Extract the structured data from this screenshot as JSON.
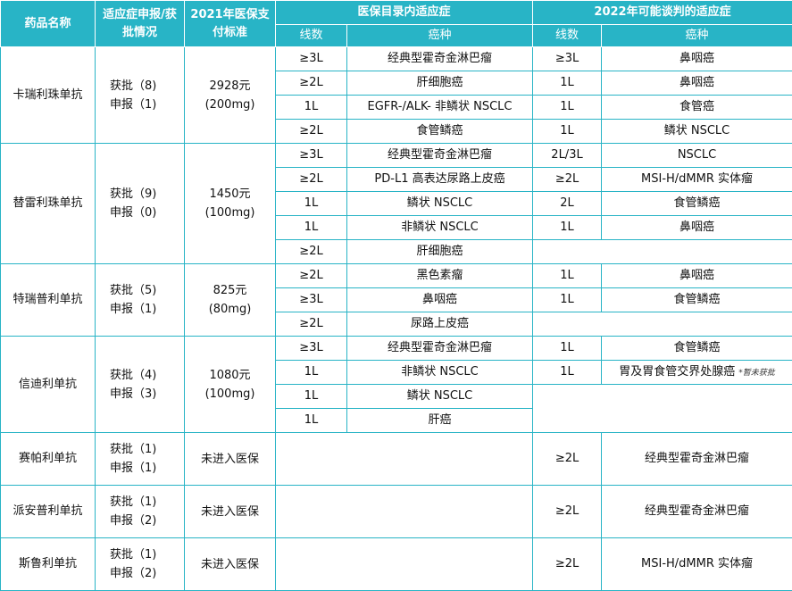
{
  "header": {
    "drug": "药品名称",
    "status": "适应症申报/获批情况",
    "price": "2021年医保支付标准",
    "group_current": "医保目录内适应症",
    "group_future": "2022年可能谈判的适应症",
    "line": "线数",
    "cancer": "癌种"
  },
  "drugs": [
    {
      "name": "卡瑞利珠单抗",
      "approved": "获批（8)",
      "filed": "申报（1)",
      "price": "2928元",
      "dose": "(200mg)",
      "rows": [
        {
          "cl": "≥3L",
          "cc": "经典型霍奇金淋巴瘤",
          "fl": "≥3L",
          "fc": "鼻咽癌"
        },
        {
          "cl": "≥2L",
          "cc": "肝细胞癌",
          "fl": "1L",
          "fc": "鼻咽癌"
        },
        {
          "cl": "1L",
          "cc": "EGFR-/ALK- 非鳞状 NSCLC",
          "fl": "1L",
          "fc": "食管癌"
        },
        {
          "cl": "≥2L",
          "cc": "食管鳞癌",
          "fl": "1L",
          "fc": "鳞状 NSCLC"
        }
      ]
    },
    {
      "name": "替雷利珠单抗",
      "approved": "获批（9)",
      "filed": "申报（0)",
      "price": "1450元",
      "dose": "(100mg)",
      "rows": [
        {
          "cl": "≥3L",
          "cc": "经典型霍奇金淋巴瘤",
          "fl": "2L/3L",
          "fc": "NSCLC"
        },
        {
          "cl": "≥2L",
          "cc": "PD-L1 高表达尿路上皮癌",
          "fl": "≥2L",
          "fc": "MSI-H/dMMR 实体瘤"
        },
        {
          "cl": "1L",
          "cc": "鳞状 NSCLC",
          "fl": "2L",
          "fc": "食管鳞癌"
        },
        {
          "cl": "1L",
          "cc": "非鳞状 NSCLC",
          "fl": "1L",
          "fc": "鼻咽癌"
        },
        {
          "cl": "≥2L",
          "cc": "肝细胞癌",
          "fl": "",
          "fc": ""
        }
      ]
    },
    {
      "name": "特瑞普利单抗",
      "approved": "获批（5)",
      "filed": "申报（1)",
      "price": "825元",
      "dose": "(80mg)",
      "rows": [
        {
          "cl": "≥2L",
          "cc": "黑色素瘤",
          "fl": "1L",
          "fc": "鼻咽癌"
        },
        {
          "cl": "≥3L",
          "cc": "鼻咽癌",
          "fl": "1L",
          "fc": "食管鳞癌"
        },
        {
          "cl": "≥2L",
          "cc": "尿路上皮癌",
          "fl": "",
          "fc": ""
        }
      ]
    },
    {
      "name": "信迪利单抗",
      "approved": "获批（4)",
      "filed": "申报（3)",
      "price": "1080元",
      "dose": "(100mg)",
      "rows": [
        {
          "cl": "≥3L",
          "cc": "经典型霍奇金淋巴瘤",
          "fl": "1L",
          "fc": "食管鳞癌"
        },
        {
          "cl": "1L",
          "cc": "非鳞状 NSCLC",
          "fl": "1L",
          "fc": "胃及胃食管交界处腺癌",
          "note": "*暂未获批"
        },
        {
          "cl": "1L",
          "cc": "鳞状 NSCLC",
          "fl": "",
          "fc": ""
        },
        {
          "cl": "1L",
          "cc": "肝癌",
          "fl": "",
          "fc": ""
        }
      ]
    },
    {
      "name": "赛帕利单抗",
      "approved": "获批（1)",
      "filed": "申报（1)",
      "price": "未进入医保",
      "dose": "",
      "rows": [
        {
          "cl": "",
          "cc": "",
          "fl": "≥2L",
          "fc": "经典型霍奇金淋巴瘤"
        }
      ]
    },
    {
      "name": "派安普利单抗",
      "approved": "获批（1)",
      "filed": "申报（2)",
      "price": "未进入医保",
      "dose": "",
      "rows": [
        {
          "cl": "",
          "cc": "",
          "fl": "≥2L",
          "fc": "经典型霍奇金淋巴瘤"
        }
      ]
    },
    {
      "name": "斯鲁利单抗",
      "approved": "获批（1)",
      "filed": "申报（2)",
      "price": "未进入医保",
      "dose": "",
      "rows": [
        {
          "cl": "",
          "cc": "",
          "fl": "≥2L",
          "fc": "MSI-H/dMMR 实体瘤"
        }
      ]
    }
  ]
}
